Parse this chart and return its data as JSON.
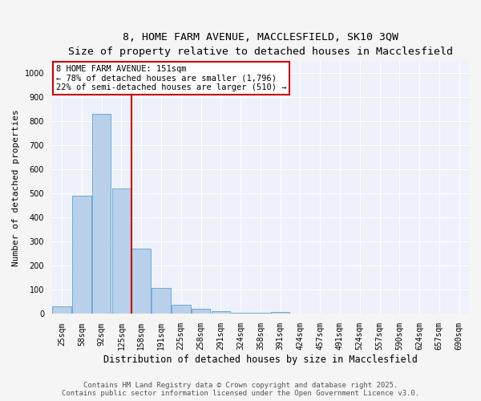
{
  "title_line1": "8, HOME FARM AVENUE, MACCLESFIELD, SK10 3QW",
  "title_line2": "Size of property relative to detached houses in Macclesfield",
  "xlabel": "Distribution of detached houses by size in Macclesfield",
  "ylabel": "Number of detached properties",
  "categories": [
    "25sqm",
    "58sqm",
    "92sqm",
    "125sqm",
    "158sqm",
    "191sqm",
    "225sqm",
    "258sqm",
    "291sqm",
    "324sqm",
    "358sqm",
    "391sqm",
    "424sqm",
    "457sqm",
    "491sqm",
    "524sqm",
    "557sqm",
    "590sqm",
    "624sqm",
    "657sqm",
    "690sqm"
  ],
  "values": [
    30,
    490,
    830,
    520,
    270,
    108,
    38,
    22,
    10,
    5,
    5,
    8,
    0,
    0,
    0,
    0,
    0,
    0,
    0,
    0,
    0
  ],
  "bar_color": "#b8d0ea",
  "bar_edgecolor": "#6eaad4",
  "red_line_index": 4,
  "red_line_color": "#cc0000",
  "annotation_text": "8 HOME FARM AVENUE: 151sqm\n← 78% of detached houses are smaller (1,796)\n22% of semi-detached houses are larger (510) →",
  "annotation_box_color": "#ffffff",
  "annotation_box_edgecolor": "#cc0000",
  "ylim": [
    0,
    1050
  ],
  "yticks": [
    0,
    100,
    200,
    300,
    400,
    500,
    600,
    700,
    800,
    900,
    1000
  ],
  "background_color": "#eef1fa",
  "grid_color": "#ffffff",
  "footer_line1": "Contains HM Land Registry data © Crown copyright and database right 2025.",
  "footer_line2": "Contains public sector information licensed under the Open Government Licence v3.0.",
  "title_fontsize": 9.5,
  "subtitle_fontsize": 8.5,
  "xlabel_fontsize": 8.5,
  "ylabel_fontsize": 8,
  "tick_fontsize": 7,
  "annotation_fontsize": 7.5,
  "footer_fontsize": 6.5
}
